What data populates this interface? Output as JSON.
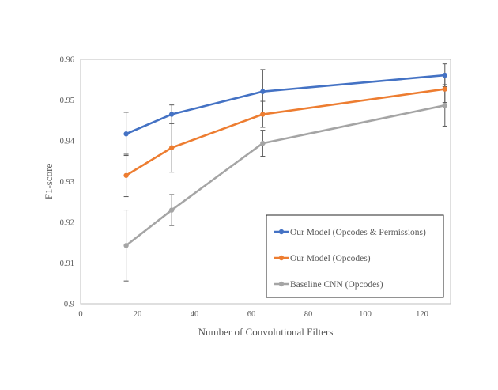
{
  "chart_data": {
    "type": "line",
    "xlabel": "Number of Convolutional Filters",
    "ylabel": "F1-score",
    "xlim": [
      0,
      130
    ],
    "ylim": [
      0.9,
      0.96
    ],
    "x_ticks": [
      0,
      20,
      40,
      60,
      80,
      100,
      120
    ],
    "y_ticks": [
      0.9,
      0.91,
      0.92,
      0.93,
      0.94,
      0.95,
      0.96
    ],
    "x_tick_labels": [
      "0",
      "20",
      "40",
      "60",
      "80",
      "100",
      "120"
    ],
    "y_tick_labels": [
      "0.9",
      "0.91",
      "0.92",
      "0.93",
      "0.94",
      "0.95",
      "0.96"
    ],
    "grid": false,
    "legend_position": "bottom-right",
    "x": [
      16,
      32,
      64,
      128
    ],
    "series": [
      {
        "name": "Our Model (Opcodes & Permissions)",
        "color": "#4472C4",
        "values": [
          0.9417,
          0.9465,
          0.9521,
          0.9561
        ],
        "error": [
          0.0053,
          0.0023,
          0.0054,
          0.0028
        ]
      },
      {
        "name": "Our Model (Opcodes)",
        "color": "#ED7D31",
        "values": [
          0.9315,
          0.9383,
          0.9465,
          0.9527
        ],
        "error": [
          0.0052,
          0.006,
          0.0032,
          0.0033
        ]
      },
      {
        "name": "Baseline CNN (Opcodes)",
        "color": "#A5A5A5",
        "values": [
          0.9143,
          0.923,
          0.9394,
          0.9487
        ],
        "error": [
          0.0087,
          0.0038,
          0.0032,
          0.0051
        ]
      }
    ]
  }
}
